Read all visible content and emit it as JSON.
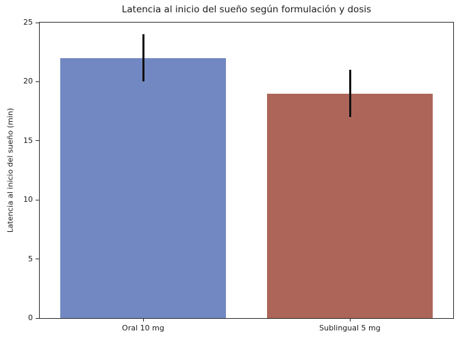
{
  "figure": {
    "background": "#ffffff"
  },
  "chart_data": {
    "type": "bar",
    "title": "Latencia al inicio del sueño según formulación y dosis",
    "xlabel": "",
    "ylabel": "Latencia al inicio del sueño (min)",
    "categories": [
      "Oral 10 mg",
      "Sublingual 5 mg"
    ],
    "values": [
      22,
      19
    ],
    "error_bars": [
      2,
      2
    ],
    "bar_colors": [
      "#7288c2",
      "#ad655a"
    ],
    "error_color": "#111111",
    "ylim": [
      0,
      25
    ],
    "yticks": [
      0,
      5,
      10,
      15,
      20,
      25
    ],
    "grid": false,
    "legend": "none",
    "bar_width_fraction": 0.8
  }
}
